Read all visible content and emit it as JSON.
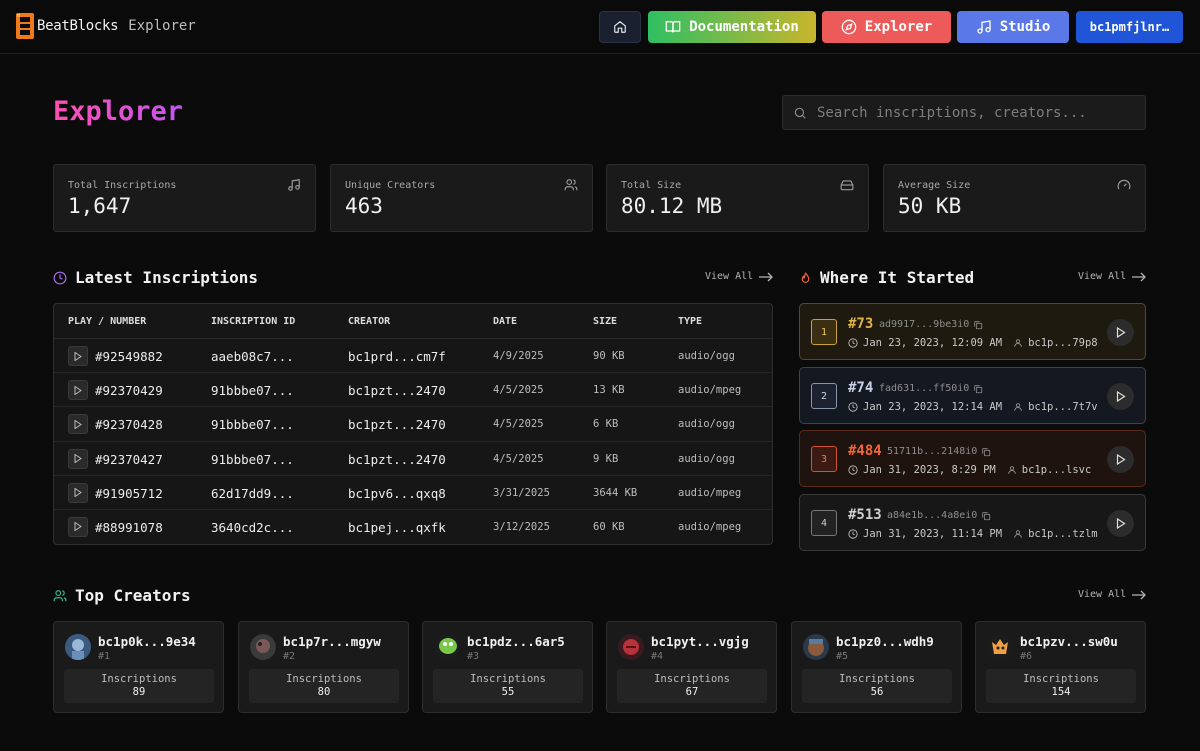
{
  "nav": {
    "logo_text": "BeatBlocks",
    "logo_sub": "Explorer",
    "docs_label": "Documentation",
    "explorer_label": "Explorer",
    "studio_label": "Studio",
    "wallet_label": "bc1pmfjlnr…"
  },
  "header": {
    "title": "Explorer",
    "search_placeholder": "Search inscriptions, creators..."
  },
  "stats": [
    {
      "label": "Total Inscriptions",
      "value": "1,647",
      "icon": "music-note-icon"
    },
    {
      "label": "Unique Creators",
      "value": "463",
      "icon": "users-icon"
    },
    {
      "label": "Total Size",
      "value": "80.12 MB",
      "icon": "hard-drive-icon"
    },
    {
      "label": "Average Size",
      "value": "50 KB",
      "icon": "gauge-icon"
    }
  ],
  "latest": {
    "title": "Latest Inscriptions",
    "view_all": "View All",
    "columns": [
      "PLAY / NUMBER",
      "INSCRIPTION ID",
      "CREATOR",
      "DATE",
      "SIZE",
      "TYPE"
    ],
    "rows": [
      {
        "number": "#92549882",
        "id": "aaeb08c7...",
        "creator": "bc1prd...cm7f",
        "date": "4/9/2025",
        "size": "90 KB",
        "type": "audio/ogg"
      },
      {
        "number": "#92370429",
        "id": "91bbbe07...",
        "creator": "bc1pzt...2470",
        "date": "4/5/2025",
        "size": "13 KB",
        "type": "audio/mpeg"
      },
      {
        "number": "#92370428",
        "id": "91bbbe07...",
        "creator": "bc1pzt...2470",
        "date": "4/5/2025",
        "size": "6 KB",
        "type": "audio/ogg"
      },
      {
        "number": "#92370427",
        "id": "91bbbe07...",
        "creator": "bc1pzt...2470",
        "date": "4/5/2025",
        "size": "9 KB",
        "type": "audio/ogg"
      },
      {
        "number": "#91905712",
        "id": "62d17dd9...",
        "creator": "bc1pv6...qxq8",
        "date": "3/31/2025",
        "size": "3644 KB",
        "type": "audio/mpeg"
      },
      {
        "number": "#88991078",
        "id": "3640cd2c...",
        "creator": "bc1pej...qxfk",
        "date": "3/12/2025",
        "size": "60 KB",
        "type": "audio/mpeg"
      }
    ]
  },
  "started": {
    "title": "Where It Started",
    "view_all": "View All",
    "items": [
      {
        "rank": "1",
        "number": "#73",
        "id": "ad9917...9be3i0",
        "date": "Jan 23, 2023, 12:09 AM",
        "creator": "bc1p...79p8",
        "accent": "#e0b34a"
      },
      {
        "rank": "2",
        "number": "#74",
        "id": "fad631...ff50i0",
        "date": "Jan 23, 2023, 12:14 AM",
        "creator": "bc1p...7t7v",
        "accent": "#c9d2e6"
      },
      {
        "rank": "3",
        "number": "#484",
        "id": "51711b...2148i0",
        "date": "Jan 31, 2023, 8:29 PM",
        "creator": "bc1p...lsvc",
        "accent": "#f0663a"
      },
      {
        "rank": "4",
        "number": "#513",
        "id": "a84e1b...4a8ei0",
        "date": "Jan 31, 2023, 11:14 PM",
        "creator": "bc1p...tzlm",
        "accent": "#d0d0d0"
      }
    ]
  },
  "creators": {
    "title": "Top Creators",
    "view_all": "View All",
    "box_label": "Inscriptions",
    "items": [
      {
        "name": "bc1p0k...9e34",
        "rank": "#1",
        "count": "89",
        "avatar_color": "#6b8fb8"
      },
      {
        "name": "bc1p7r...mgyw",
        "rank": "#2",
        "count": "80",
        "avatar_color": "#7a5858"
      },
      {
        "name": "bc1pdz...6ar5",
        "rank": "#3",
        "count": "55",
        "avatar_color": "#7ac84a"
      },
      {
        "name": "bc1pyt...vgjg",
        "rank": "#4",
        "count": "67",
        "avatar_color": "#b8323a"
      },
      {
        "name": "bc1pz0...wdh9",
        "rank": "#5",
        "count": "56",
        "avatar_color": "#8a5a3a"
      },
      {
        "name": "bc1pzv...sw0u",
        "rank": "#6",
        "count": "154",
        "avatar_color": "#f0a040"
      }
    ]
  }
}
